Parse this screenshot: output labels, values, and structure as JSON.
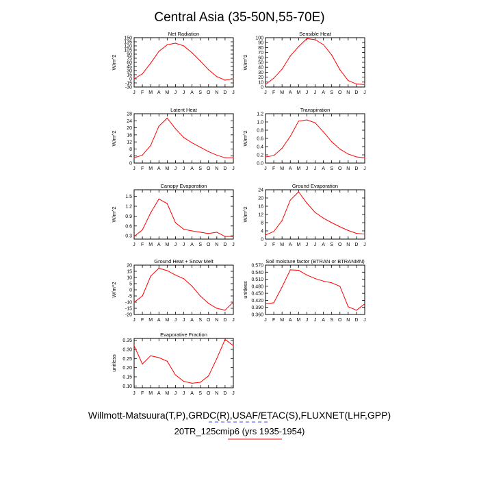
{
  "page_title": "Central Asia (35-50N,55-70E)",
  "footer": {
    "line1": "Willmott-Matsuura(T,P),GRDC(R),USAF/ETAC(S),FLUXNET(LHF,GPP)",
    "line2": "20TR_125cmip6 (yrs 1935-1954)"
  },
  "colors": {
    "series": "#ff0000",
    "axis": "#000000",
    "legend_line2": "#4040ff",
    "legend_line3": "#ff0000"
  },
  "chart_data": [
    {
      "type": "line",
      "title": "Net Radiation",
      "ylabel": "W/m^2",
      "categories": [
        "J",
        "F",
        "M",
        "A",
        "M",
        "J",
        "J",
        "A",
        "S",
        "O",
        "N",
        "D",
        "J"
      ],
      "ylim": [
        -30,
        150
      ],
      "yticks": [
        -30,
        -15,
        0,
        15,
        30,
        45,
        60,
        75,
        90,
        105,
        120,
        135,
        150
      ],
      "ytick_labels": [
        "-30",
        "-15",
        "0",
        "15",
        "30",
        "45",
        "60",
        "75",
        "90",
        "105",
        "120",
        "135",
        "150"
      ],
      "values": [
        0,
        18,
        57,
        100,
        124,
        130,
        120,
        95,
        65,
        33,
        8,
        -5,
        0
      ]
    },
    {
      "type": "line",
      "title": "Sensible Heat",
      "ylabel": "W/m^2",
      "categories": [
        "J",
        "F",
        "M",
        "A",
        "M",
        "J",
        "J",
        "A",
        "S",
        "O",
        "N",
        "D",
        "J"
      ],
      "ylim": [
        0,
        100
      ],
      "yticks": [
        0,
        10,
        20,
        30,
        40,
        50,
        60,
        70,
        80,
        90,
        100
      ],
      "ytick_labels": [
        "0",
        "10",
        "20",
        "30",
        "40",
        "50",
        "60",
        "70",
        "80",
        "90",
        "100"
      ],
      "values": [
        5,
        18,
        36,
        63,
        82,
        98,
        96,
        86,
        65,
        35,
        13,
        6,
        5
      ]
    },
    {
      "type": "line",
      "title": "Latent Heat",
      "ylabel": "W/m^2",
      "categories": [
        "J",
        "F",
        "M",
        "A",
        "M",
        "J",
        "J",
        "A",
        "S",
        "O",
        "N",
        "D",
        "J"
      ],
      "ylim": [
        0,
        28
      ],
      "yticks": [
        0,
        4,
        8,
        12,
        16,
        20,
        24,
        28
      ],
      "ytick_labels": [
        "0",
        "4",
        "8",
        "12",
        "16",
        "20",
        "24",
        "28"
      ],
      "values": [
        3,
        4.5,
        10,
        21,
        25.5,
        19.5,
        14.5,
        11.5,
        9,
        6.5,
        4.5,
        3,
        3
      ]
    },
    {
      "type": "line",
      "title": "Transpiration",
      "ylabel": "W/m^2",
      "categories": [
        "J",
        "F",
        "M",
        "A",
        "M",
        "J",
        "J",
        "A",
        "S",
        "O",
        "N",
        "D",
        "J"
      ],
      "ylim": [
        0,
        1.2
      ],
      "yticks": [
        0,
        0.2,
        0.4,
        0.6,
        0.8,
        1.0,
        1.2
      ],
      "ytick_labels": [
        "0.0",
        "0.2",
        "0.4",
        "0.6",
        "0.8",
        "1.0",
        "1.2"
      ],
      "values": [
        0.15,
        0.18,
        0.36,
        0.65,
        1.02,
        1.05,
        0.98,
        0.76,
        0.52,
        0.34,
        0.22,
        0.15,
        0.13
      ]
    },
    {
      "type": "line",
      "title": "Canopy Evaporation",
      "ylabel": "W/m^2",
      "categories": [
        "J",
        "F",
        "M",
        "A",
        "M",
        "J",
        "J",
        "A",
        "S",
        "O",
        "N",
        "D",
        "J"
      ],
      "ylim": [
        0.2,
        1.7
      ],
      "yticks": [
        0.3,
        0.6,
        0.9,
        1.2,
        1.5
      ],
      "ytick_labels": [
        "0.3",
        "0.6",
        "0.9",
        "1.2",
        "1.5"
      ],
      "values": [
        0.28,
        0.48,
        1.0,
        1.42,
        1.28,
        0.7,
        0.5,
        0.45,
        0.41,
        0.37,
        0.41,
        0.28,
        0.28
      ]
    },
    {
      "type": "line",
      "title": "Ground Evaporation",
      "ylabel": "W/m^2",
      "categories": [
        "J",
        "F",
        "M",
        "A",
        "M",
        "J",
        "J",
        "A",
        "S",
        "O",
        "N",
        "D",
        "J"
      ],
      "ylim": [
        0,
        24
      ],
      "yticks": [
        0,
        4,
        8,
        12,
        16,
        20,
        24
      ],
      "ytick_labels": [
        "0",
        "4",
        "8",
        "12",
        "16",
        "20",
        "24"
      ],
      "values": [
        2,
        3.7,
        9,
        19,
        23,
        17.5,
        13,
        10.2,
        8,
        6,
        4.2,
        2.8,
        2.4
      ]
    },
    {
      "type": "line",
      "title": "Ground Heat + Snow Melt",
      "ylabel": "W/m^2",
      "categories": [
        "J",
        "F",
        "M",
        "A",
        "M",
        "J",
        "J",
        "A",
        "S",
        "O",
        "N",
        "D",
        "J"
      ],
      "ylim": [
        -20,
        20
      ],
      "yticks": [
        -20,
        -15,
        -10,
        -5,
        0,
        5,
        10,
        15,
        20
      ],
      "ytick_labels": [
        "-20",
        "-15",
        "-10",
        "-5",
        "0",
        "5",
        "10",
        "15",
        "20"
      ],
      "values": [
        -10,
        -5,
        11,
        17.5,
        15.5,
        12,
        9,
        3,
        -5,
        -11,
        -15,
        -16.5,
        -10
      ]
    },
    {
      "type": "line",
      "title": "Soil moisture factor (BTRAN or BTRANMN)",
      "ylabel": "unitless",
      "categories": [
        "J",
        "F",
        "M",
        "A",
        "M",
        "J",
        "J",
        "A",
        "S",
        "O",
        "N",
        "D",
        "J"
      ],
      "ylim": [
        0.36,
        0.57
      ],
      "yticks": [
        0.36,
        0.39,
        0.42,
        0.45,
        0.48,
        0.51,
        0.54,
        0.57
      ],
      "ytick_labels": [
        "0.360",
        "0.390",
        "0.420",
        "0.450",
        "0.480",
        "0.510",
        "0.540",
        "0.570"
      ],
      "values": [
        0.405,
        0.41,
        0.477,
        0.55,
        0.548,
        0.528,
        0.513,
        0.502,
        0.495,
        0.48,
        0.393,
        0.378,
        0.405
      ]
    },
    {
      "type": "line",
      "title": "Evaporative Fraction",
      "ylabel": "unitless",
      "categories": [
        "J",
        "F",
        "M",
        "A",
        "M",
        "J",
        "J",
        "A",
        "S",
        "O",
        "N",
        "D",
        "J"
      ],
      "ylim": [
        0.09,
        0.36
      ],
      "yticks": [
        0.1,
        0.15,
        0.2,
        0.25,
        0.3,
        0.35
      ],
      "ytick_labels": [
        "0.10",
        "0.15",
        "0.20",
        "0.25",
        "0.30",
        "0.35"
      ],
      "values": [
        0.32,
        0.22,
        0.265,
        0.255,
        0.235,
        0.16,
        0.125,
        0.115,
        0.12,
        0.155,
        0.25,
        0.355,
        0.32
      ]
    }
  ]
}
